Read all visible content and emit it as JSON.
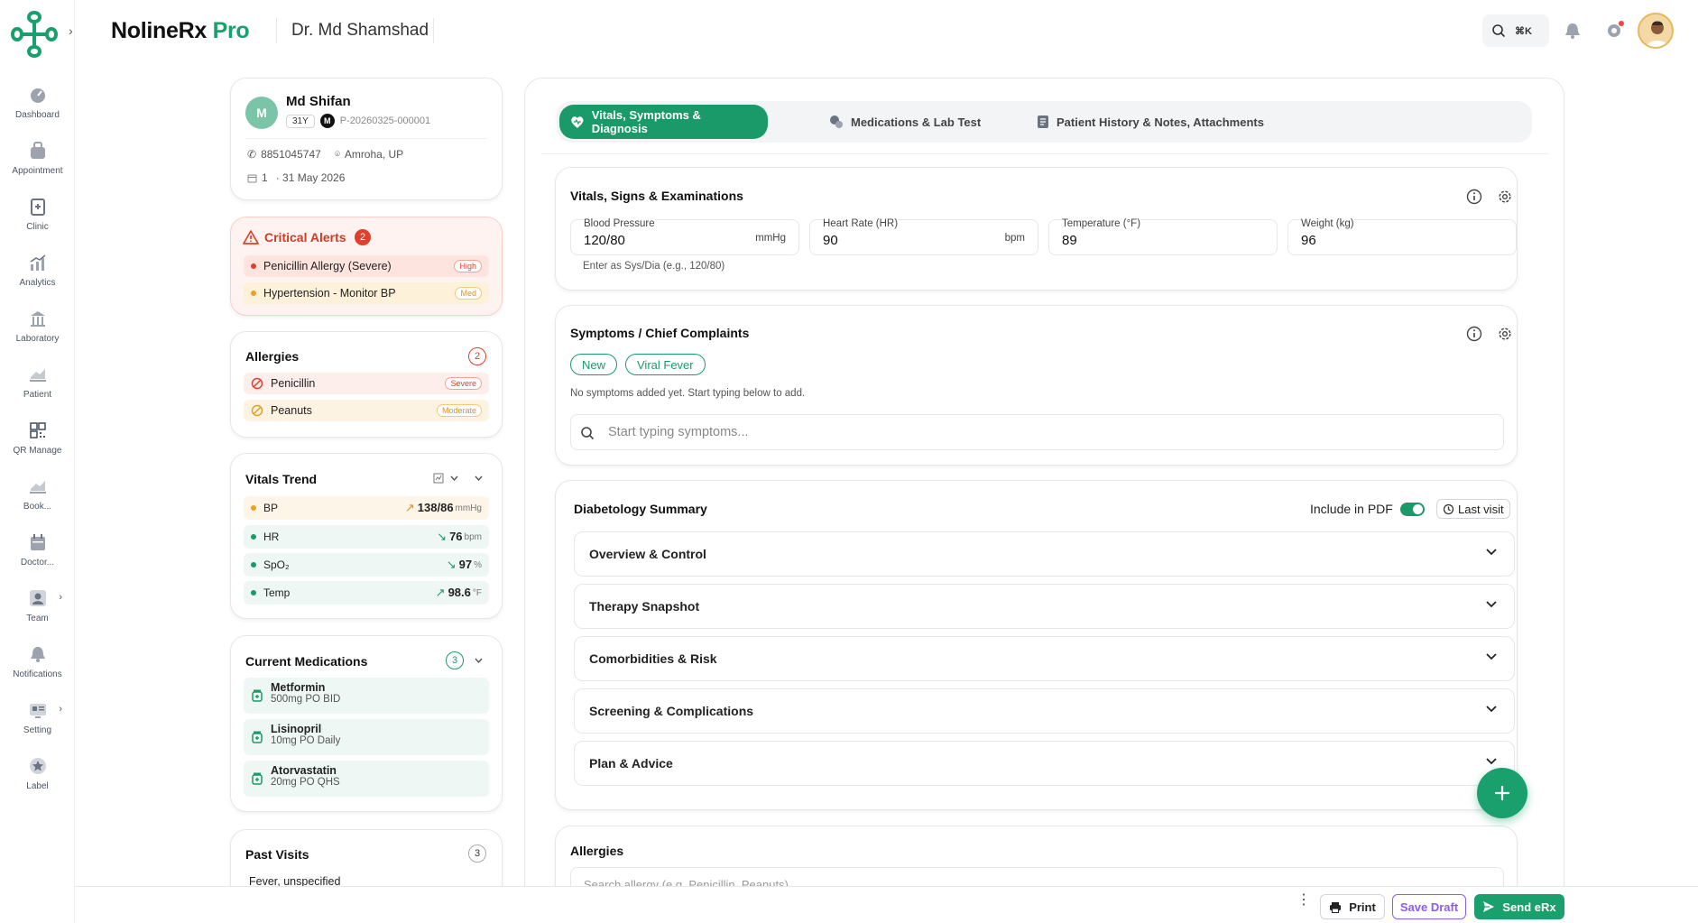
{
  "app": {
    "brand_main": "NolineRx",
    "brand_accent": "Pro",
    "doctor": "Dr. Md Shamshad",
    "shortcut": "⌘K",
    "accent_color": "#1a9a68"
  },
  "sidebar": {
    "items": [
      {
        "label": "Dashboard",
        "icon": "dashboard-icon"
      },
      {
        "label": "Appointment",
        "icon": "appointment-icon"
      },
      {
        "label": "Clinic",
        "icon": "clinic-icon"
      },
      {
        "label": "Analytics",
        "icon": "analytics-icon"
      },
      {
        "label": "Laboratory",
        "icon": "laboratory-icon"
      },
      {
        "label": "Patient",
        "icon": "patient-icon"
      },
      {
        "label": "QR Manage",
        "icon": "qr-icon"
      },
      {
        "label": "Book...",
        "icon": "booking-icon"
      },
      {
        "label": "Doctor...",
        "icon": "doctor-icon"
      },
      {
        "label": "Team",
        "icon": "team-icon"
      },
      {
        "label": "Notifications",
        "icon": "bell-icon"
      },
      {
        "label": "Setting",
        "icon": "settings-icon"
      },
      {
        "label": "Label",
        "icon": "label-icon"
      }
    ]
  },
  "patient": {
    "initial": "M",
    "name": "Md Shifan",
    "age": "31Y",
    "gender": "M",
    "id": "P-20260325-000001",
    "phone": "8851045747",
    "location": "Amroha, UP",
    "visit_count": "1",
    "date": "· 31 May 2026"
  },
  "critical_alerts": {
    "title": "Critical Alerts",
    "count": "2",
    "items": [
      {
        "text": "Penicillin Allergy (Severe)",
        "level": "High"
      },
      {
        "text": "Hypertension - Monitor BP",
        "level": "Med"
      }
    ]
  },
  "allergies_card": {
    "title": "Allergies",
    "count": "2",
    "items": [
      {
        "name": "Penicillin",
        "severity": "Severe"
      },
      {
        "name": "Peanuts",
        "severity": "Moderate"
      }
    ]
  },
  "vitals_trend": {
    "title": "Vitals Trend",
    "items": [
      {
        "label": "BP",
        "value": "138/86",
        "unit": "mmHg",
        "trend": "up"
      },
      {
        "label": "HR",
        "value": "76",
        "unit": "bpm",
        "trend": "down"
      },
      {
        "label": "SpO₂",
        "value": "97",
        "unit": "%",
        "trend": "down"
      },
      {
        "label": "Temp",
        "value": "98.6",
        "unit": "°F",
        "trend": "up"
      }
    ]
  },
  "medications": {
    "title": "Current Medications",
    "count": "3",
    "items": [
      {
        "name": "Metformin",
        "dose": "500mg PO BID"
      },
      {
        "name": "Lisinopril",
        "dose": "10mg PO Daily"
      },
      {
        "name": "Atorvastatin",
        "dose": "20mg PO QHS"
      }
    ]
  },
  "past_visits": {
    "title": "Past Visits",
    "count": "3",
    "first": "Fever, unspecified"
  },
  "tabs": [
    "Vitals, Symptoms & Diagnosis",
    "Medications & Lab Test",
    "Patient History & Notes, Attachments"
  ],
  "vitals": {
    "title": "Vitals, Signs & Examinations",
    "hint": "Enter as Sys/Dia (e.g., 120/80)",
    "fields": [
      {
        "label": "Blood Pressure",
        "value": "120/80",
        "unit": "mmHg"
      },
      {
        "label": "Heart Rate (HR)",
        "value": "90",
        "unit": "bpm"
      },
      {
        "label": "Temperature (°F)",
        "value": "89",
        "unit": ""
      },
      {
        "label": "Weight (kg)",
        "value": "96",
        "unit": ""
      }
    ]
  },
  "symptoms": {
    "title": "Symptoms / Chief Complaints",
    "tags": [
      "New",
      "Viral Fever"
    ],
    "empty_text": "No symptoms added yet. Start typing below to add.",
    "placeholder": "Start typing symptoms..."
  },
  "diabetology": {
    "title": "Diabetology Summary",
    "include_pdf": "Include in PDF",
    "last_visit": "Last visit",
    "sections": [
      "Overview & Control",
      "Therapy Snapshot",
      "Comorbidities & Risk",
      "Screening & Complications",
      "Plan & Advice"
    ]
  },
  "allergies_section": {
    "title": "Allergies",
    "placeholder": "Search allergy (e.g. Penicillin, Peanuts)"
  },
  "footer": {
    "print": "Print",
    "save_draft": "Save Draft",
    "send": "Send eRx"
  }
}
